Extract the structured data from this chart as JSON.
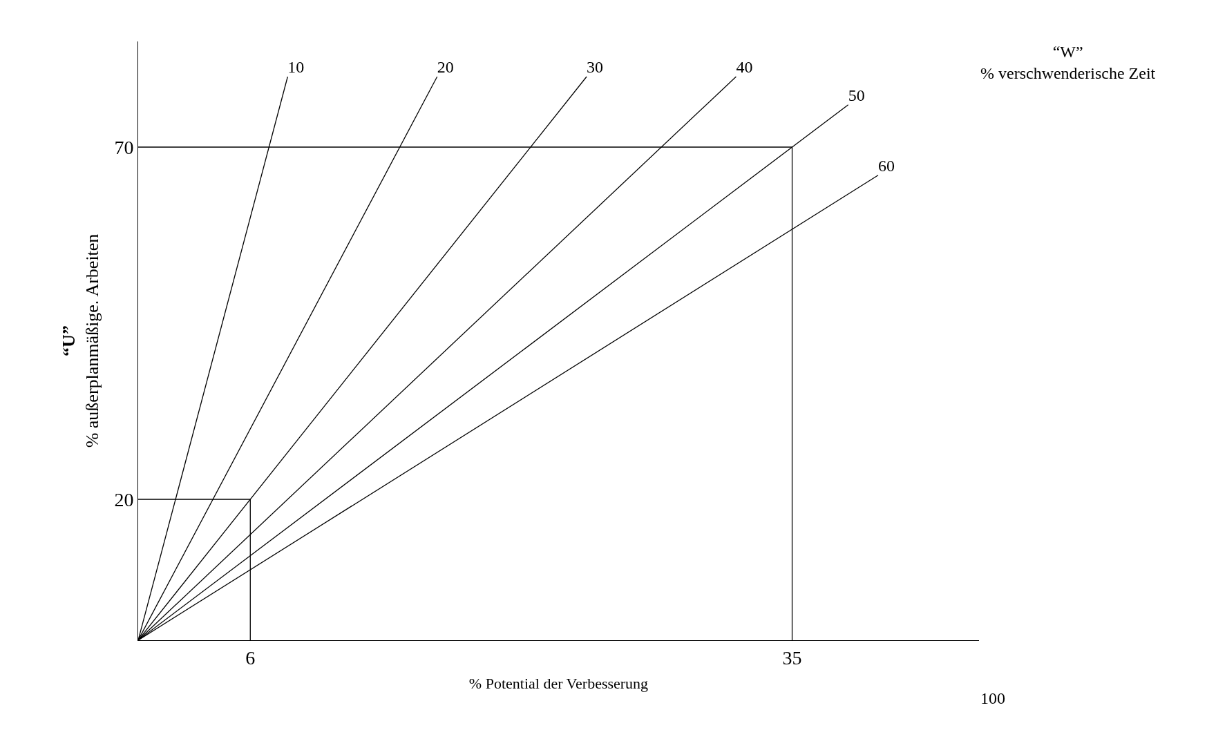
{
  "chart_data": {
    "type": "line",
    "xlabel": "% Potential der Verbesserung",
    "ylabel": "“U”\n% außerplanmäßige. Arbeiten",
    "xlim": [
      0,
      45
    ],
    "xticks": [
      6,
      35
    ],
    "ylim": [
      0,
      85
    ],
    "yticks": [
      20,
      70
    ],
    "legend": false,
    "marker": "none",
    "line_style": "solid",
    "annotations": [
      "“W”\n% verschwenderische Zeit",
      "100"
    ],
    "series": [
      {
        "name": "10",
        "color": "#000000",
        "x": [
          0,
          8
        ],
        "values": [
          0,
          80
        ]
      },
      {
        "name": "20",
        "color": "#000000",
        "x": [
          0,
          16
        ],
        "values": [
          0,
          80
        ]
      },
      {
        "name": "30",
        "color": "#000000",
        "x": [
          0,
          24
        ],
        "values": [
          0,
          80
        ]
      },
      {
        "name": "40",
        "color": "#000000",
        "x": [
          0,
          32
        ],
        "values": [
          0,
          80
        ]
      },
      {
        "name": "50",
        "color": "#000000",
        "x": [
          0,
          38
        ],
        "values": [
          0,
          76
        ]
      },
      {
        "name": "60",
        "color": "#000000",
        "x": [
          0,
          39.6
        ],
        "values": [
          0,
          66
        ]
      },
      {
        "color": "#000000",
        "x": [
          0,
          6,
          6
        ],
        "values": [
          20,
          20,
          0
        ]
      },
      {
        "color": "#000000",
        "x": [
          0,
          35,
          35
        ],
        "values": [
          70,
          70,
          0
        ]
      }
    ]
  }
}
